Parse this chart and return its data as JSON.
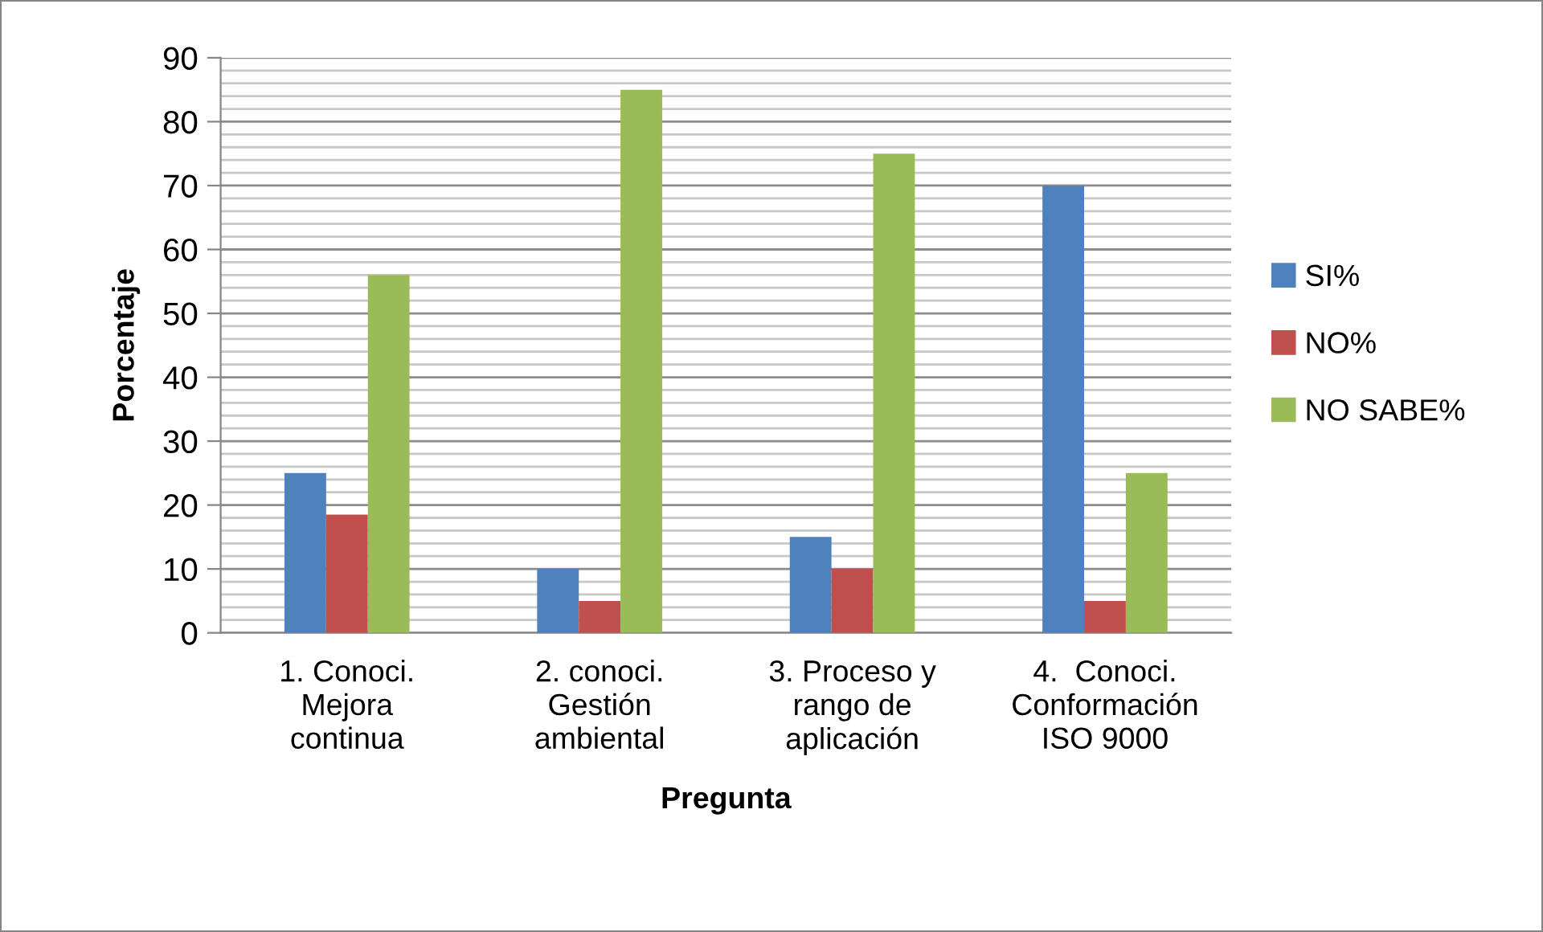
{
  "chart_data": {
    "type": "bar",
    "xlabel": "Pregunta",
    "ylabel": "Porcentaje",
    "categories": [
      "1. Conoci.\nMejora\ncontinua",
      "2. conoci.\nGestión\nambiental",
      "3. Proceso y\nrango de\naplicación",
      "4.  Conoci.\nConformación\nISO 9000"
    ],
    "series": [
      {
        "name": "SI%",
        "color": "#4f81bd",
        "values": [
          25,
          10,
          15,
          70
        ]
      },
      {
        "name": "NO%",
        "color": "#c0504d",
        "values": [
          18.5,
          5,
          10,
          5
        ]
      },
      {
        "name": "NO SABE%",
        "color": "#9bbb59",
        "values": [
          56,
          85,
          75,
          25
        ]
      }
    ],
    "ylim": [
      0,
      90
    ],
    "yticks": [
      0,
      {
        "value": 2,
        "label": null
      },
      {
        "value": 4,
        "label": null
      },
      {
        "value": 6,
        "label": null
      },
      {
        "value": 8,
        "label": null
      },
      10,
      {
        "value": 12,
        "label": null
      },
      {
        "value": 14,
        "label": null
      },
      {
        "value": 16,
        "label": null
      },
      {
        "value": 18,
        "label": null
      },
      20,
      {
        "value": 22,
        "label": null
      },
      {
        "value": 24,
        "label": null
      },
      {
        "value": 26,
        "label": null
      },
      {
        "value": 28,
        "label": null
      },
      30,
      {
        "value": 32,
        "label": null
      },
      {
        "value": 34,
        "label": null
      },
      {
        "value": 36,
        "label": null
      },
      {
        "value": 38,
        "label": null
      },
      40,
      {
        "value": 42,
        "label": null
      },
      {
        "value": 44,
        "label": null
      },
      {
        "value": 46,
        "label": null
      },
      {
        "value": 48,
        "label": null
      },
      50,
      {
        "value": 52,
        "label": null
      },
      {
        "value": 54,
        "label": null
      },
      {
        "value": 56,
        "label": null
      },
      {
        "value": 58,
        "label": null
      },
      60,
      {
        "value": 62,
        "label": null
      },
      {
        "value": 64,
        "label": null
      },
      {
        "value": 66,
        "label": null
      },
      {
        "value": 68,
        "label": null
      },
      70,
      {
        "value": 72,
        "label": null
      },
      {
        "value": 74,
        "label": null
      },
      {
        "value": 76,
        "label": null
      },
      {
        "value": 78,
        "label": null
      },
      80,
      {
        "value": 82,
        "label": null
      },
      {
        "value": 84,
        "label": null
      },
      {
        "value": 86,
        "label": null
      },
      {
        "value": 88,
        "label": null
      },
      90
    ],
    "grid": "y",
    "legend": "right"
  }
}
